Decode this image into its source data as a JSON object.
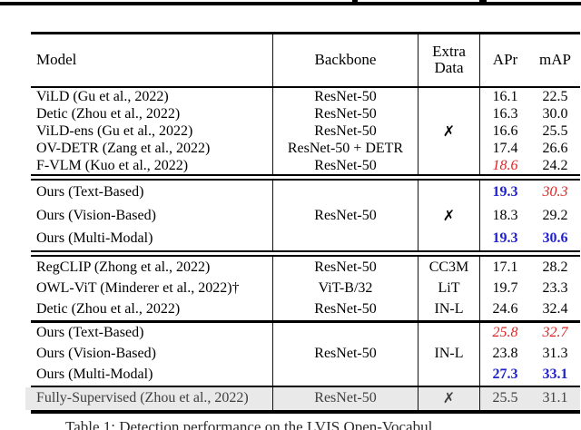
{
  "accent_colors": {
    "highlight_red": "#dd2222",
    "highlight_blue": "#2222cc",
    "gray_row_bg": "#e9e9e9",
    "rule_black": "#000000"
  },
  "header": {
    "model": "Model",
    "backbone": "Backbone",
    "extra_line1": "Extra",
    "extra_line2": "Data",
    "apr": "APr",
    "map": "mAP"
  },
  "groups": [
    {
      "extra": "✗",
      "rows": [
        {
          "model": "ViLD (Gu et al., 2022)",
          "backbone": "ResNet-50",
          "apr": "16.1",
          "map": "22.5"
        },
        {
          "model": "Detic (Zhou et al., 2022)",
          "backbone": "ResNet-50",
          "apr": "16.3",
          "map": "30.0"
        },
        {
          "model": "ViLD-ens (Gu et al., 2022)",
          "backbone": "ResNet-50",
          "apr": "16.6",
          "map": "25.5"
        },
        {
          "model": "OV-DETR (Zang et al., 2022)",
          "backbone": "ResNet-50 + DETR",
          "apr": "17.4",
          "map": "26.6"
        },
        {
          "model": "F-VLM (Kuo et al., 2022)",
          "backbone": "ResNet-50",
          "apr": "18.6",
          "map": "24.2",
          "apr_style": "red-italic"
        }
      ]
    },
    {
      "backbone": "ResNet-50",
      "extra": "✗",
      "rows": [
        {
          "model": "Ours (Text-Based)",
          "apr": "19.3",
          "map": "30.3",
          "apr_style": "blue-bold",
          "map_style": "red-italic"
        },
        {
          "model": "Ours (Vision-Based)",
          "apr": "18.3",
          "map": "29.2"
        },
        {
          "model": "Ours (Multi-Modal)",
          "apr": "19.3",
          "map": "30.6",
          "apr_style": "blue-bold",
          "map_style": "blue-bold"
        }
      ]
    },
    {
      "rows": [
        {
          "model": "RegCLIP (Zhong et al., 2022)",
          "backbone": "ResNet-50",
          "extra": "CC3M",
          "apr": "17.1",
          "map": "28.2"
        },
        {
          "model": "OWL-ViT (Minderer et al., 2022)†",
          "backbone": "ViT-B/32",
          "extra": "LiT",
          "apr": "19.7",
          "map": "23.3"
        },
        {
          "model": "Detic (Zhou et al., 2022)",
          "backbone": "ResNet-50",
          "extra": "IN-L",
          "apr": "24.6",
          "map": "32.4"
        }
      ]
    },
    {
      "backbone": "ResNet-50",
      "extra": "IN-L",
      "rows": [
        {
          "model": "Ours (Text-Based)",
          "apr": "25.8",
          "map": "32.7",
          "apr_style": "red-italic",
          "map_style": "red-italic"
        },
        {
          "model": "Ours (Vision-Based)",
          "apr": "23.8",
          "map": "31.3"
        },
        {
          "model": "Ours (Multi-Modal)",
          "apr": "27.3",
          "map": "33.1",
          "apr_style": "blue-bold",
          "map_style": "blue-bold"
        }
      ]
    }
  ],
  "footer_row": {
    "model": "Fully-Supervised (Zhou et al., 2022)",
    "backbone": "ResNet-50",
    "extra": "✗",
    "apr": "25.5",
    "map": "31.1"
  },
  "caption": "Table 1: Detection performance on the LVIS Open-Vocabul"
}
